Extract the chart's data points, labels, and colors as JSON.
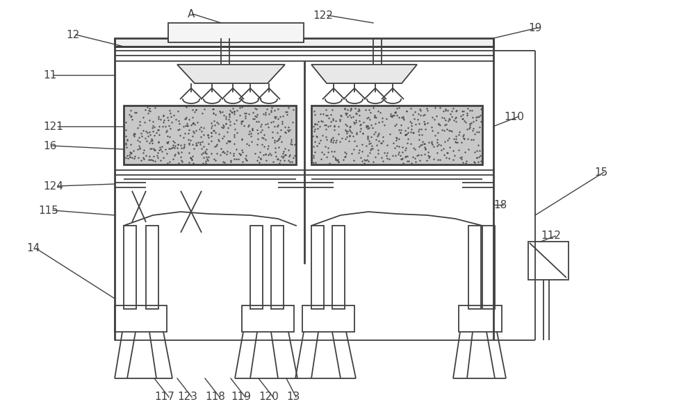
{
  "bg": "#ffffff",
  "lc": "#404040",
  "lw": 1.3,
  "tlw": 2.0
}
